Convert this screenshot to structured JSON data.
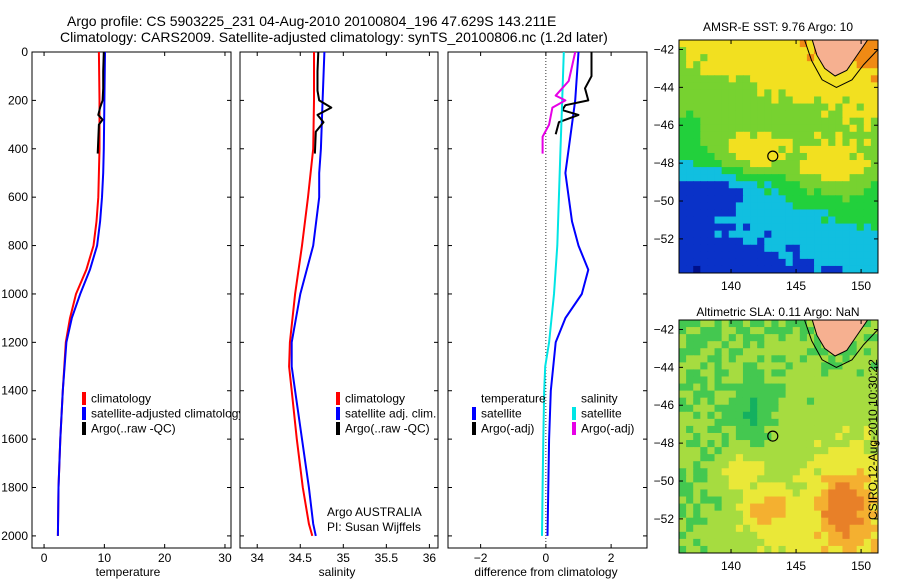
{
  "header": {
    "title_line1": "Argo profile: CS 5903225_231 04-Aug-2010 20100804_196 47.629S 143.211E",
    "title_line2": "Climatology: CARS2009. Satellite-adjusted climatology: synTS_20100806.nc (1.2d later)"
  },
  "stamp": "CSIRO 12-Aug-2010 10:30:22",
  "chart_data": [
    {
      "type": "line",
      "xlabel": "temperature",
      "ylabel": "",
      "xlim": [
        -2,
        31
      ],
      "ylim": [
        2050,
        0
      ],
      "xticks": [
        0,
        10,
        20,
        30
      ],
      "yticks": [
        0,
        200,
        400,
        600,
        800,
        1000,
        1200,
        1400,
        1600,
        1800,
        2000
      ],
      "y_reversed": true,
      "legend": [
        "climatology",
        "satellite-adjusted climatology",
        "Argo(..raw -QC)"
      ],
      "legend_position": "lower-right",
      "series": [
        {
          "name": "climatology",
          "color": "#ff0000",
          "x": [
            9.1,
            9.2,
            9.2,
            9.1,
            9.0,
            8.7,
            8.2,
            7.0,
            5.3,
            4.3,
            3.6,
            3.1,
            2.7,
            2.4,
            2.3
          ],
          "y": [
            0,
            200,
            400,
            500,
            600,
            700,
            800,
            900,
            1000,
            1100,
            1200,
            1400,
            1600,
            1800,
            2000
          ]
        },
        {
          "name": "satellite-adjusted climatology",
          "color": "#0000ff",
          "x": [
            10.1,
            10.0,
            9.9,
            9.8,
            9.6,
            9.3,
            8.8,
            7.6,
            6.0,
            4.6,
            3.7,
            3.1,
            2.7,
            2.4,
            2.3
          ],
          "y": [
            0,
            200,
            400,
            500,
            600,
            700,
            800,
            900,
            1000,
            1100,
            1200,
            1400,
            1600,
            1800,
            2000
          ]
        },
        {
          "name": "Argo(..raw -QC)",
          "color": "#000000",
          "x": [
            9.9,
            9.8,
            9.8,
            9.7,
            9.3,
            9.0,
            9.7,
            9.1,
            9.0,
            8.9
          ],
          "y": [
            0,
            80,
            150,
            200,
            230,
            260,
            280,
            300,
            360,
            420
          ]
        }
      ]
    },
    {
      "type": "line",
      "xlabel": "salinity",
      "ylabel": "",
      "xlim": [
        33.8,
        36.1
      ],
      "ylim": [
        2050,
        0
      ],
      "xticks": [
        34,
        34.5,
        35,
        35.5,
        36
      ],
      "yticks": [
        0,
        200,
        400,
        600,
        800,
        1000,
        1200,
        1400,
        1600,
        1800,
        2000
      ],
      "y_reversed": true,
      "legend": [
        "climatology",
        "satellite adj. clim.",
        "Argo(..raw -QC)"
      ],
      "legend_position": "lower-right",
      "annotation": [
        "Argo AUSTRALIA",
        "PI: Susan Wijffels"
      ],
      "series": [
        {
          "name": "climatology",
          "color": "#ff0000",
          "x": [
            34.66,
            34.66,
            34.65,
            34.62,
            34.59,
            34.52,
            34.44,
            34.38,
            34.37,
            34.4,
            34.46,
            34.53,
            34.6,
            34.64
          ],
          "y": [
            0,
            200,
            400,
            500,
            600,
            800,
            1000,
            1200,
            1300,
            1400,
            1600,
            1800,
            1950,
            2000
          ]
        },
        {
          "name": "satellite adj. clim.",
          "color": "#0000ff",
          "x": [
            34.78,
            34.76,
            34.74,
            34.72,
            34.72,
            34.65,
            34.5,
            34.4,
            34.4,
            34.44,
            34.52,
            34.6,
            34.65,
            34.68
          ],
          "y": [
            0,
            200,
            400,
            500,
            600,
            800,
            1000,
            1200,
            1300,
            1400,
            1600,
            1800,
            1950,
            2000
          ]
        },
        {
          "name": "Argo(..raw -QC)",
          "color": "#000000",
          "x": [
            34.71,
            34.7,
            34.7,
            34.72,
            34.86,
            34.7,
            34.77,
            34.68,
            34.67
          ],
          "y": [
            0,
            80,
            160,
            200,
            230,
            260,
            290,
            330,
            420
          ]
        }
      ]
    },
    {
      "type": "line",
      "xlabel": "difference from climatology",
      "ylabel": "",
      "xlim": [
        -3,
        3.1
      ],
      "ylim": [
        2050,
        0
      ],
      "xticks": [
        -2,
        0,
        2
      ],
      "yticks": [
        0,
        200,
        400,
        600,
        800,
        1000,
        1200,
        1400,
        1600,
        1800,
        2000
      ],
      "y_reversed": true,
      "legend": [
        "temperature",
        "satellite",
        "Argo(-adj)",
        "salinity",
        "satellite",
        "Argo(-adj)"
      ],
      "legend_position": "lower-center",
      "series": [
        {
          "name": "temperature satellite",
          "color": "#0000ff",
          "x": [
            1.0,
            0.9,
            0.7,
            0.6,
            0.7,
            0.8,
            1.0,
            1.3,
            1.1,
            0.6,
            0.3,
            0.15,
            0.1,
            0.05
          ],
          "y": [
            0,
            200,
            400,
            500,
            600,
            700,
            800,
            900,
            1000,
            1100,
            1200,
            1400,
            1600,
            2000
          ]
        },
        {
          "name": "temperature Argo(-adj)",
          "color": "#000000",
          "x": [
            1.4,
            1.4,
            1.2,
            1.3,
            0.6,
            0.5,
            1.0,
            0.4,
            0.3
          ],
          "y": [
            0,
            100,
            150,
            200,
            220,
            240,
            260,
            290,
            340
          ]
        },
        {
          "name": "salinity satellite",
          "color": "#00e5e5",
          "x": [
            0.55,
            0.5,
            0.45,
            0.4,
            0.35,
            0.25,
            0.1,
            -0.02,
            -0.05,
            -0.08,
            -0.1,
            -0.12
          ],
          "y": [
            0,
            200,
            400,
            600,
            800,
            1000,
            1200,
            1300,
            1400,
            1600,
            1800,
            2000
          ]
        },
        {
          "name": "salinity Argo(-adj)",
          "color": "#e600e6",
          "x": [
            0.9,
            0.8,
            0.7,
            0.3,
            0.6,
            0.2,
            0.1,
            -0.1,
            -0.1
          ],
          "y": [
            0,
            60,
            120,
            180,
            200,
            230,
            300,
            350,
            420
          ]
        }
      ]
    },
    {
      "type": "heatmap",
      "title": "AMSR-E SST: 9.76 Argo: 10",
      "xlim": [
        136,
        151.3
      ],
      "ylim": [
        -53.8,
        -41.5
      ],
      "xticks": [
        140,
        145,
        150
      ],
      "yticks": [
        -42,
        -44,
        -46,
        -48,
        -50,
        -52
      ],
      "marker": {
        "lon": 143.211,
        "lat": -47.629
      },
      "colors": [
        "#00108a",
        "#0a32c8",
        "#11bfe0",
        "#22d03c",
        "#77d230",
        "#f2e020",
        "#f08a14",
        "#c0140a",
        "#f6b090"
      ]
    },
    {
      "type": "heatmap",
      "title": "Altimetric SLA: 0.11 Argo: NaN",
      "xlim": [
        136,
        151.3
      ],
      "ylim": [
        -53.8,
        -41.5
      ],
      "xticks": [
        140,
        145,
        150
      ],
      "yticks": [
        -42,
        -44,
        -46,
        -48,
        -50,
        -52
      ],
      "marker": {
        "lon": 143.211,
        "lat": -47.629
      },
      "colors": [
        "#14b060",
        "#44c850",
        "#a6dc40",
        "#eae838",
        "#f4b030",
        "#e88028",
        "#d85a28",
        "#f6b090"
      ]
    }
  ]
}
